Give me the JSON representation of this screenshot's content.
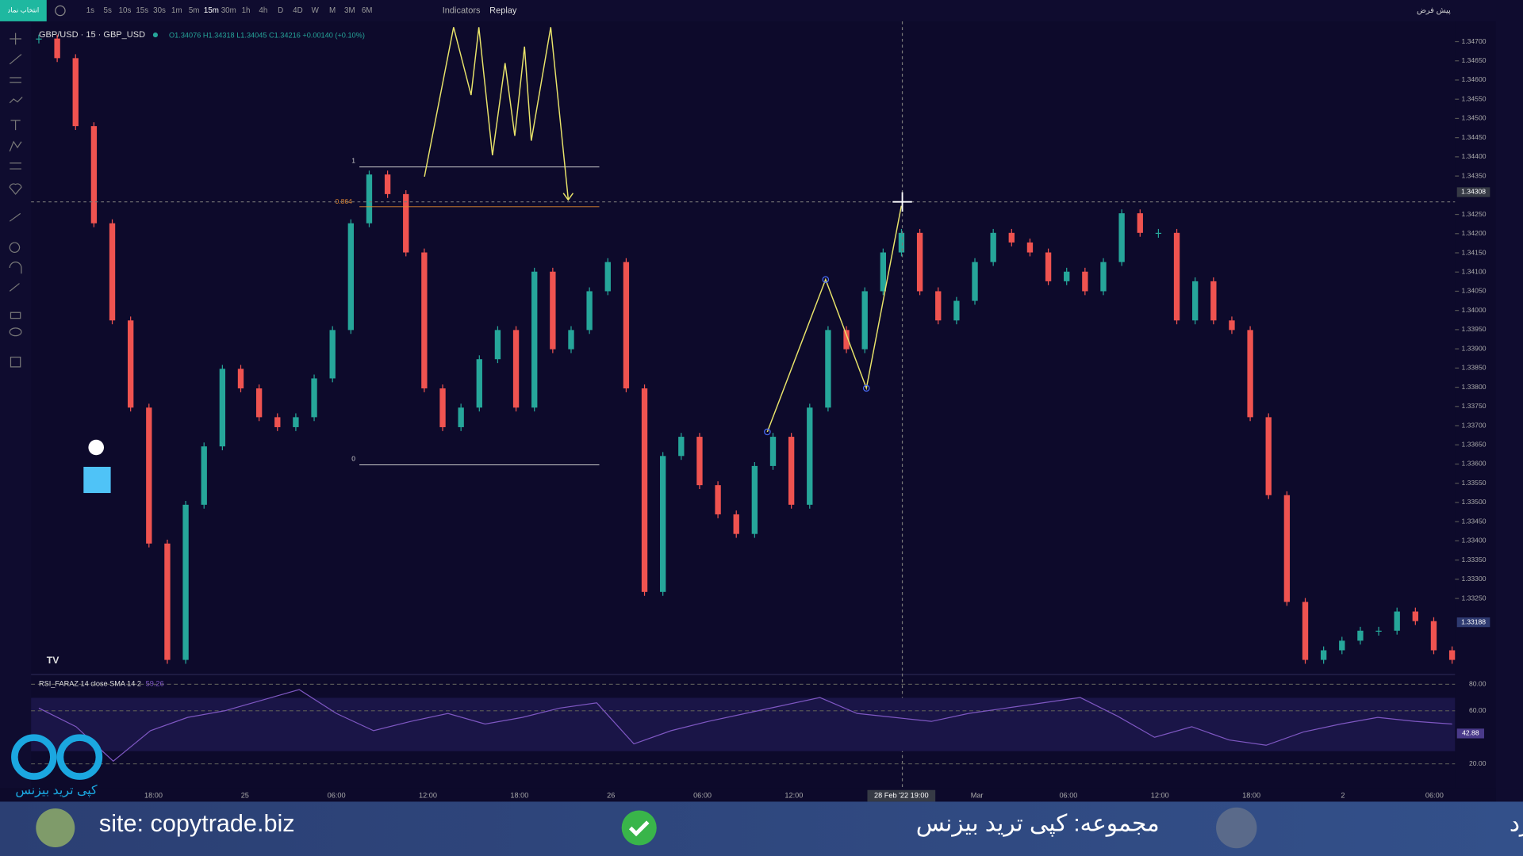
{
  "toolbar": {
    "symbol_button": "انتخاب نماد",
    "intervals": [
      "1s",
      "5s",
      "10s",
      "15s",
      "30s",
      "1m",
      "5m",
      "15m",
      "30m",
      "1h",
      "4h",
      "D",
      "4D",
      "W",
      "M",
      "3M",
      "6M"
    ],
    "indicators": "Indicators",
    "replay": "Replay",
    "layout_name": "پیش فرض"
  },
  "legend": {
    "symbol": "GBP/USD · 15 · GBP_USD",
    "ohlc": "O1.34076 H1.34318 L1.34045 C1.34216 +0.00140 (+0.10%)"
  },
  "drawings": {
    "fib_top": "1",
    "fib_mid": "0.864",
    "fib_bottom": "0"
  },
  "chart_data": {
    "type": "candlestick",
    "up_color": "#26a69a",
    "down_color": "#ef5350",
    "values": [
      1.34708,
      1.34657,
      1.3448,
      1.34227,
      1.33974,
      1.33747,
      1.33393,
      1.3309,
      1.33494,
      1.33646,
      1.33848,
      1.33797,
      1.33722,
      1.33696,
      1.33722,
      1.33823,
      1.33949,
      1.34227,
      1.34354,
      1.34303,
      1.34151,
      1.33797,
      1.33696,
      1.33747,
      1.33873,
      1.33949,
      1.33747,
      1.34101,
      1.33899,
      1.33949,
      1.3405,
      1.34126,
      1.33797,
      1.33267,
      1.33621,
      1.33671,
      1.33545,
      1.33469,
      1.33418,
      1.33595,
      1.33671,
      1.33494,
      1.33747,
      1.33949,
      1.33899,
      1.3405,
      1.34151,
      1.34202,
      1.3405,
      1.33974,
      1.34025,
      1.34126,
      1.34202,
      1.34177,
      1.34151,
      1.34076,
      1.34101,
      1.3405,
      1.34126,
      1.34253,
      1.34202,
      1.34202,
      1.33974,
      1.34076,
      1.33974,
      1.33949,
      1.33722,
      1.33519,
      1.33241,
      1.3309,
      1.33115,
      1.3314,
      1.33166,
      1.33166,
      1.33216,
      1.33191,
      1.33115,
      1.3309
    ],
    "ylim": [
      1.33057,
      1.34725
    ],
    "yticks": [
      {
        "value": 1.347,
        "label": "1.34700"
      },
      {
        "value": 1.3465,
        "label": "1.34650"
      },
      {
        "value": 1.346,
        "label": "1.34600"
      },
      {
        "value": 1.3455,
        "label": "1.34550"
      },
      {
        "value": 1.345,
        "label": "1.34500"
      },
      {
        "value": 1.3445,
        "label": "1.34450"
      },
      {
        "value": 1.344,
        "label": "1.34400"
      },
      {
        "value": 1.3435,
        "label": "1.34350"
      },
      {
        "value": 1.3425,
        "label": "1.34250"
      },
      {
        "value": 1.342,
        "label": "1.34200"
      },
      {
        "value": 1.3415,
        "label": "1.34150"
      },
      {
        "value": 1.341,
        "label": "1.34100"
      },
      {
        "value": 1.3405,
        "label": "1.34050"
      },
      {
        "value": 1.34,
        "label": "1.34000"
      },
      {
        "value": 1.3395,
        "label": "1.33950"
      },
      {
        "value": 1.339,
        "label": "1.33900"
      },
      {
        "value": 1.3385,
        "label": "1.33850"
      },
      {
        "value": 1.338,
        "label": "1.33800"
      },
      {
        "value": 1.3375,
        "label": "1.33750"
      },
      {
        "value": 1.337,
        "label": "1.33700"
      },
      {
        "value": 1.3365,
        "label": "1.33650"
      },
      {
        "value": 1.336,
        "label": "1.33600"
      },
      {
        "value": 1.3355,
        "label": "1.33550"
      },
      {
        "value": 1.335,
        "label": "1.33500"
      },
      {
        "value": 1.3345,
        "label": "1.33450"
      },
      {
        "value": 1.334,
        "label": "1.33400"
      },
      {
        "value": 1.3335,
        "label": "1.33350"
      },
      {
        "value": 1.333,
        "label": "1.33300"
      },
      {
        "value": 1.3325,
        "label": "1.33250"
      }
    ],
    "crosshair_price": {
      "value": 1.34308,
      "label": "1.34308"
    },
    "last_price": {
      "value": 1.33188,
      "label": "1.33188"
    },
    "time_axis": [
      "18:00",
      "25",
      "06:00",
      "12:00",
      "18:00",
      "26",
      "06:00",
      "12:00",
      null,
      "Mar",
      "06:00",
      "12:00",
      "18:00",
      "2",
      "06:00"
    ],
    "crosshair_time": "28 Feb '22  19:00"
  },
  "rsi": {
    "type": "line",
    "title": "RSI_FARAZ 14 close SMA 14 2",
    "value_text": "59.26",
    "color": "#7e57c2",
    "values": [
      62,
      48,
      22,
      45,
      55,
      60,
      68,
      76,
      58,
      45,
      52,
      58,
      50,
      55,
      62,
      66,
      35,
      45,
      52,
      58,
      64,
      70,
      58,
      55,
      52,
      58,
      62,
      66,
      70,
      56,
      40,
      48,
      38,
      34,
      44,
      50,
      55,
      52,
      50
    ],
    "ylim": [
      1.7,
      85.9
    ],
    "yticks": [
      {
        "value": 80,
        "label": "80.00"
      },
      {
        "value": 60,
        "label": "60.00"
      },
      {
        "value": 20,
        "label": "20.00"
      }
    ],
    "current": {
      "value": 42.88,
      "label": "42.88"
    }
  },
  "logo": {
    "text": "کپی ترید بیزنس"
  },
  "banner": {
    "site": "site: copytrade.biz",
    "group": "مجموعه: کپی ترید بیزنس",
    "presenter": "ارائه توسط: اتابک منفرد"
  }
}
